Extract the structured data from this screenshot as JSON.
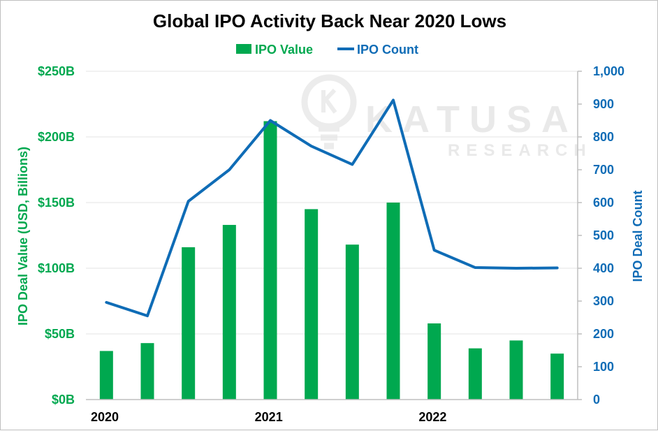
{
  "chart_data": {
    "type": "bar+line",
    "title": "Global IPO Activity Back Near 2020 Lows",
    "legend": [
      {
        "name": "IPO Value",
        "style": "bar"
      },
      {
        "name": "IPO Count",
        "style": "line"
      }
    ],
    "legend_position": "top-center",
    "x_tick_labels": [
      "2020",
      "2021",
      "2022"
    ],
    "x_tick_label_positions": [
      0,
      4,
      8
    ],
    "series": [
      {
        "name": "IPO Value",
        "type": "bar",
        "axis": "left",
        "values": [
          37,
          43,
          116,
          133,
          212,
          145,
          118,
          150,
          58,
          39,
          45,
          35
        ]
      },
      {
        "name": "IPO Count",
        "type": "line",
        "axis": "right",
        "values": [
          296,
          255,
          604,
          700,
          850,
          772,
          716,
          912,
          455,
          402,
          400,
          401
        ]
      }
    ],
    "y_left": {
      "label": "IPO Deal Value (USD, Billions)",
      "ylim": [
        0,
        250
      ],
      "ticks": [
        0,
        50,
        100,
        150,
        200,
        250
      ],
      "tick_labels": [
        "$0B",
        "$50B",
        "$100B",
        "$150B",
        "$200B",
        "$250B"
      ]
    },
    "y_right": {
      "label": "IPO Deal Count",
      "ylim": [
        0,
        1000
      ],
      "ticks": [
        0,
        100,
        200,
        300,
        400,
        500,
        600,
        700,
        800,
        900,
        1000
      ],
      "tick_labels": [
        "0",
        "100",
        "200",
        "300",
        "400",
        "500",
        "600",
        "700",
        "800",
        "900",
        "1,000"
      ]
    },
    "grid": true,
    "watermark": {
      "line1": "KATUSA",
      "line2": "RESEARCH"
    },
    "colors": {
      "bar": "#00A84F",
      "line": "#0F6CB6",
      "grid": "#e3e3e3",
      "axis": "#bfbfbf"
    }
  }
}
